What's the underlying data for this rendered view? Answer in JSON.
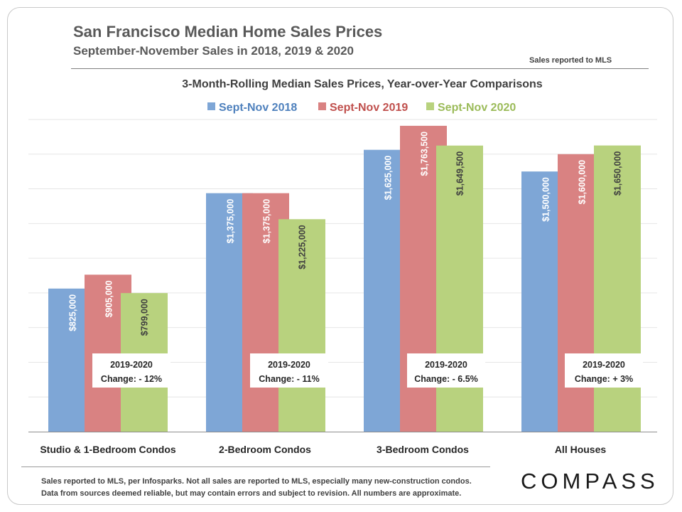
{
  "header": {
    "title": "San Francisco Median Home Sales Prices",
    "subtitle": "September-November  Sales in 2018, 2019 & 2020",
    "source_note": "Sales reported to MLS"
  },
  "footer": {
    "line1": "Sales reported to MLS, per Infosparks. Not all sales are reported to MLS, especially many new-construction condos.",
    "line2": "Data from sources deemed reliable, but may contain errors and subject to revision.  All numbers are approximate.",
    "logo": "COMPASS"
  },
  "chart_data": {
    "type": "bar",
    "title": "3-Month-Rolling Median Sales Prices, Year-over-Year Comparisons",
    "xlabel": "",
    "ylabel": "",
    "ylim": [
      0,
      1800000
    ],
    "grid": true,
    "legend_position": "top",
    "categories": [
      "Studio  & 1-Bedroom  Condos",
      "2-Bedroom  Condos",
      "3-Bedroom  Condos",
      "All Houses"
    ],
    "series": [
      {
        "name": "Sept-Nov 2018",
        "color": "#7ea6d6",
        "values": [
          825000,
          1375000,
          1625000,
          1500000
        ],
        "labels": [
          "$825,000",
          "$1,375,000",
          "$1,625,000",
          "$1,500,000"
        ],
        "label_color": "#ffffff"
      },
      {
        "name": "Sept-Nov 2019",
        "color": "#d98282",
        "values": [
          905000,
          1375000,
          1763500,
          1600000
        ],
        "labels": [
          "$905,000",
          "$1,375,000",
          "$1,763,500",
          "$1,600,000"
        ],
        "label_color": "#ffffff"
      },
      {
        "name": "Sept-Nov 2020",
        "color": "#b8d27e",
        "values": [
          799000,
          1225000,
          1649500,
          1650000
        ],
        "labels": [
          "$799,000",
          "$1,225,000",
          "$1,649,500",
          "$1,650,000"
        ],
        "label_color": "#404040"
      }
    ],
    "legend_text_colors": [
      "#4f81bd",
      "#c0504d",
      "#9bbb59"
    ],
    "annotations": [
      {
        "line1": "2019-2020",
        "line2": "Change: - 12%"
      },
      {
        "line1": "2019-2020",
        "line2": "Change: - 11%"
      },
      {
        "line1": "2019-2020",
        "line2": "Change: - 6.5%"
      },
      {
        "line1": "2019-2020",
        "line2": "Change: + 3%"
      }
    ]
  }
}
